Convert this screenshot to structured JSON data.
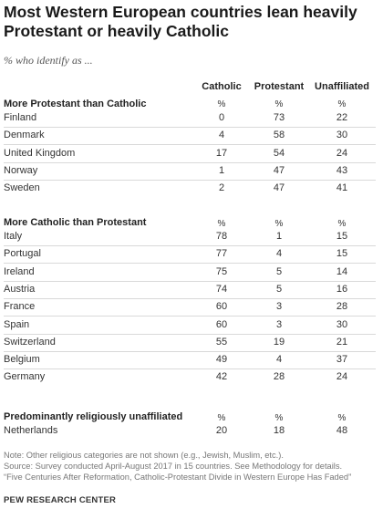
{
  "title": "Most Western European countries lean heavily Protestant or heavily Catholic",
  "subtitle": "% who identify as ...",
  "chart_data": {
    "type": "table",
    "columns": [
      "Catholic",
      "Protestant",
      "Unaffiliated"
    ],
    "unit_label": "%",
    "groups": [
      {
        "label": "More Protestant than Catholic",
        "rows": [
          {
            "country": "Finland",
            "values": [
              0,
              73,
              22
            ]
          },
          {
            "country": "Denmark",
            "values": [
              4,
              58,
              30
            ]
          },
          {
            "country": "United Kingdom",
            "values": [
              17,
              54,
              24
            ]
          },
          {
            "country": "Norway",
            "values": [
              1,
              47,
              43
            ]
          },
          {
            "country": "Sweden",
            "values": [
              2,
              47,
              41
            ]
          }
        ]
      },
      {
        "label": "More Catholic than Protestant",
        "rows": [
          {
            "country": "Italy",
            "values": [
              78,
              1,
              15
            ]
          },
          {
            "country": "Portugal",
            "values": [
              77,
              4,
              15
            ]
          },
          {
            "country": "Ireland",
            "values": [
              75,
              5,
              14
            ]
          },
          {
            "country": "Austria",
            "values": [
              74,
              5,
              16
            ]
          },
          {
            "country": "France",
            "values": [
              60,
              3,
              28
            ]
          },
          {
            "country": "Spain",
            "values": [
              60,
              3,
              30
            ]
          },
          {
            "country": "Switzerland",
            "values": [
              55,
              19,
              21
            ]
          },
          {
            "country": "Belgium",
            "values": [
              49,
              4,
              37
            ]
          },
          {
            "country": "Germany",
            "values": [
              42,
              28,
              24
            ]
          }
        ]
      },
      {
        "label": "Predominantly religiously unaffiliated",
        "rows": [
          {
            "country": "Netherlands",
            "values": [
              20,
              18,
              48
            ]
          }
        ]
      }
    ]
  },
  "notes": {
    "note": "Note: Other religious categories are not shown (e.g., Jewish, Muslim, etc.).",
    "source": "Source: Survey conducted April-August 2017 in 15 countries. See Methodology for details.",
    "report": "“Five Centuries After Reformation, Catholic-Protestant Divide in Western Europe Has Faded”"
  },
  "brand": "PEW RESEARCH CENTER"
}
